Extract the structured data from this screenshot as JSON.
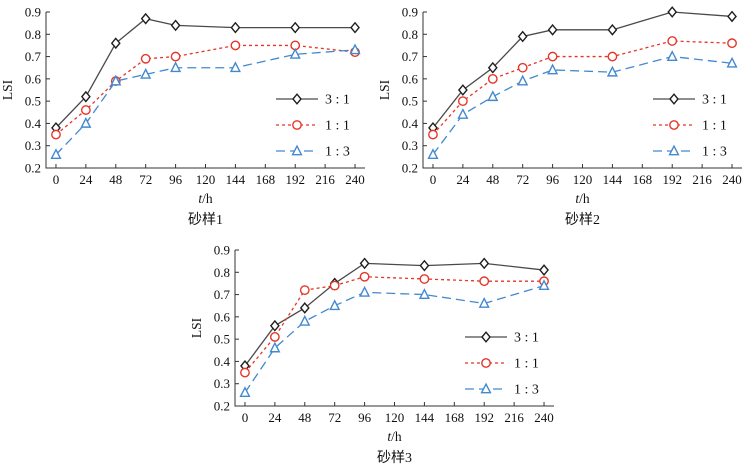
{
  "chart_data": [
    {
      "type": "line",
      "title": "砂样1",
      "xlabel": "t/h",
      "ylabel": "LSI",
      "x": [
        0,
        24,
        48,
        72,
        96,
        144,
        192,
        240
      ],
      "xticks": [
        0,
        24,
        48,
        72,
        96,
        120,
        144,
        168,
        192,
        216,
        240
      ],
      "yticks": [
        0.2,
        0.3,
        0.4,
        0.5,
        0.6,
        0.7,
        0.8,
        0.9
      ],
      "xlim": [
        -8,
        248
      ],
      "ylim": [
        0.2,
        0.9
      ],
      "grid": false,
      "legend_position": "right-center",
      "series": [
        {
          "name": "3 : 1",
          "marker": "diamond",
          "line_style": "solid",
          "line_color": "#4a4a4a",
          "marker_color": "#1f1f1f",
          "values": [
            0.38,
            0.52,
            0.76,
            0.87,
            0.84,
            0.83,
            0.83,
            0.83
          ]
        },
        {
          "name": "1 : 1",
          "marker": "circle",
          "line_style": "dotted",
          "line_color": "#e53528",
          "marker_color": "#e53528",
          "values": [
            0.35,
            0.46,
            0.59,
            0.69,
            0.7,
            0.75,
            0.75,
            0.72
          ]
        },
        {
          "name": "1 : 3",
          "marker": "triangle",
          "line_style": "dashed",
          "line_color": "#4289cf",
          "marker_color": "#4289cf",
          "values": [
            0.26,
            0.4,
            0.59,
            0.62,
            0.65,
            0.65,
            0.71,
            0.73
          ]
        }
      ]
    },
    {
      "type": "line",
      "title": "砂样2",
      "xlabel": "t/h",
      "ylabel": "LSI",
      "x": [
        0,
        24,
        48,
        72,
        96,
        144,
        192,
        240
      ],
      "xticks": [
        0,
        24,
        48,
        72,
        96,
        120,
        144,
        168,
        192,
        216,
        240
      ],
      "yticks": [
        0.2,
        0.3,
        0.4,
        0.5,
        0.6,
        0.7,
        0.8,
        0.9
      ],
      "xlim": [
        -8,
        248
      ],
      "ylim": [
        0.2,
        0.9
      ],
      "grid": false,
      "legend_position": "right-center",
      "series": [
        {
          "name": "3 : 1",
          "marker": "diamond",
          "line_style": "solid",
          "line_color": "#4a4a4a",
          "marker_color": "#1f1f1f",
          "values": [
            0.38,
            0.55,
            0.65,
            0.79,
            0.82,
            0.82,
            0.9,
            0.88
          ]
        },
        {
          "name": "1 : 1",
          "marker": "circle",
          "line_style": "dotted",
          "line_color": "#e53528",
          "marker_color": "#e53528",
          "values": [
            0.35,
            0.5,
            0.6,
            0.65,
            0.7,
            0.7,
            0.77,
            0.76
          ]
        },
        {
          "name": "1 : 3",
          "marker": "triangle",
          "line_style": "dashed",
          "line_color": "#4289cf",
          "marker_color": "#4289cf",
          "values": [
            0.26,
            0.44,
            0.52,
            0.59,
            0.64,
            0.63,
            0.7,
            0.67
          ]
        }
      ]
    },
    {
      "type": "line",
      "title": "砂样3",
      "xlabel": "t/h",
      "ylabel": "LSI",
      "x": [
        0,
        24,
        48,
        72,
        96,
        144,
        192,
        240
      ],
      "xticks": [
        0,
        24,
        48,
        72,
        96,
        120,
        144,
        168,
        192,
        216,
        240
      ],
      "yticks": [
        0.2,
        0.3,
        0.4,
        0.5,
        0.6,
        0.7,
        0.8,
        0.9
      ],
      "xlim": [
        -8,
        248
      ],
      "ylim": [
        0.2,
        0.9
      ],
      "grid": false,
      "legend_position": "right-center",
      "series": [
        {
          "name": "3 : 1",
          "marker": "diamond",
          "line_style": "solid",
          "line_color": "#4a4a4a",
          "marker_color": "#1f1f1f",
          "values": [
            0.38,
            0.56,
            0.64,
            0.75,
            0.84,
            0.83,
            0.84,
            0.81
          ]
        },
        {
          "name": "1 : 1",
          "marker": "circle",
          "line_style": "dotted",
          "line_color": "#e53528",
          "marker_color": "#e53528",
          "values": [
            0.35,
            0.51,
            0.72,
            0.74,
            0.78,
            0.77,
            0.76,
            0.76
          ]
        },
        {
          "name": "1 : 3",
          "marker": "triangle",
          "line_style": "dashed",
          "line_color": "#4289cf",
          "marker_color": "#4289cf",
          "values": [
            0.26,
            0.46,
            0.58,
            0.65,
            0.71,
            0.7,
            0.66,
            0.74
          ]
        }
      ]
    }
  ]
}
